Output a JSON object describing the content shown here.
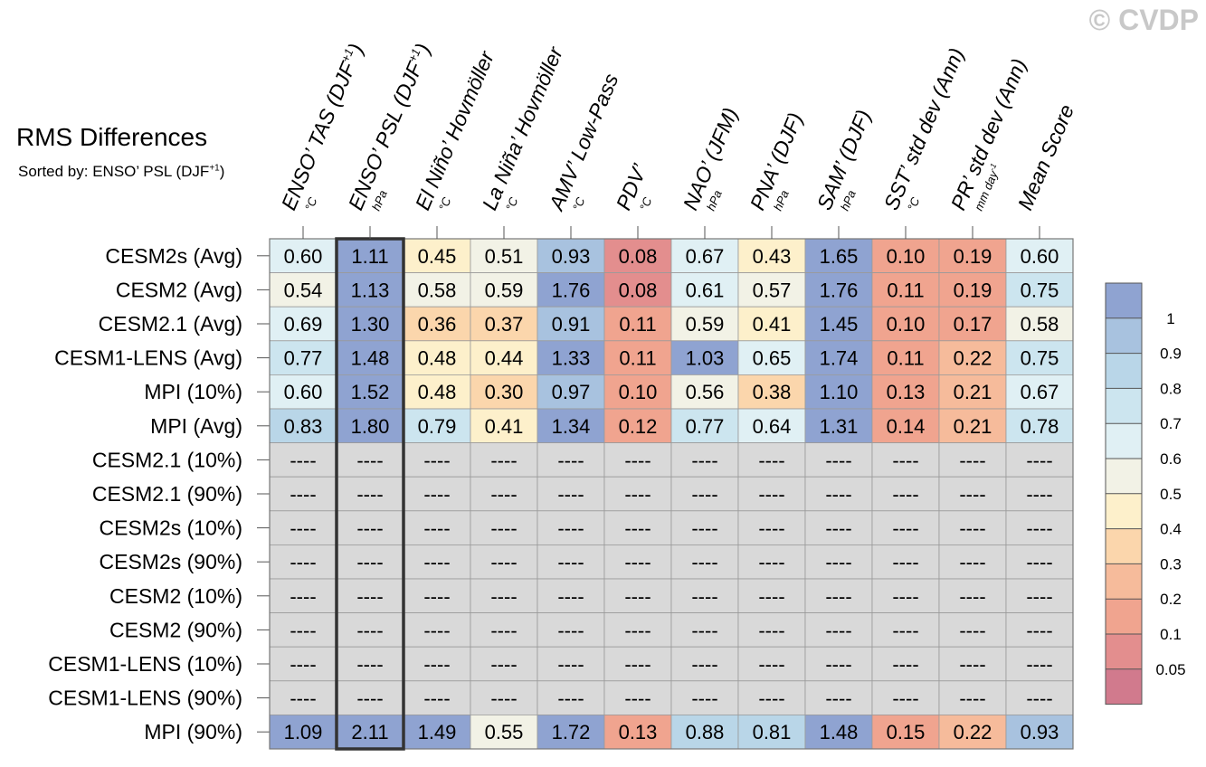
{
  "title": "RMS Differences",
  "subtitle": {
    "prefix": "Sorted by: ENSO’ PSL (DJF",
    "sup": "+1",
    "suffix": ")"
  },
  "watermark": "© CVDP",
  "chart_data": {
    "type": "table",
    "sorted_by_column": 1,
    "columns": [
      {
        "label": "ENSO’ TAS (DJF",
        "sup": "+1",
        "suffix": ")",
        "unit": "°C"
      },
      {
        "label": "ENSO’ PSL (DJF",
        "sup": "+1",
        "suffix": ")",
        "unit": "hPa"
      },
      {
        "label": "El Niño’ Hovmöller",
        "unit": "°C"
      },
      {
        "label": "La Niña’ Hovmöller",
        "unit": "°C"
      },
      {
        "label": "AMV’ Low-Pass",
        "unit": "°C"
      },
      {
        "label": "PDV’",
        "unit": "°C"
      },
      {
        "label": "NAO’ (JFM)",
        "unit": "hPa"
      },
      {
        "label": "PNA’ (DJF)",
        "unit": "hPa"
      },
      {
        "label": "SAM’ (DJF)",
        "unit": "hPa"
      },
      {
        "label": "SST’ std dev (Ann)",
        "unit": "°C"
      },
      {
        "label": "PR’ std dev (Ann)",
        "unit": "mm day",
        "unit_sup": "-1"
      },
      {
        "label": "Mean Score",
        "unit": ""
      }
    ],
    "rows": [
      {
        "name": "CESM2s (Avg)",
        "values": [
          "0.60",
          "1.11",
          "0.45",
          "0.51",
          "0.93",
          "0.08",
          "0.67",
          "0.43",
          "1.65",
          "0.10",
          "0.19",
          "0.60"
        ]
      },
      {
        "name": "CESM2 (Avg)",
        "values": [
          "0.54",
          "1.13",
          "0.58",
          "0.59",
          "1.76",
          "0.08",
          "0.61",
          "0.57",
          "1.76",
          "0.11",
          "0.19",
          "0.75"
        ]
      },
      {
        "name": "CESM2.1 (Avg)",
        "values": [
          "0.69",
          "1.30",
          "0.36",
          "0.37",
          "0.91",
          "0.11",
          "0.59",
          "0.41",
          "1.45",
          "0.10",
          "0.17",
          "0.58"
        ]
      },
      {
        "name": "CESM1-LENS (Avg)",
        "values": [
          "0.77",
          "1.48",
          "0.48",
          "0.44",
          "1.33",
          "0.11",
          "1.03",
          "0.65",
          "1.74",
          "0.11",
          "0.22",
          "0.75"
        ]
      },
      {
        "name": "MPI (10%)",
        "values": [
          "0.60",
          "1.52",
          "0.48",
          "0.30",
          "0.97",
          "0.10",
          "0.56",
          "0.38",
          "1.10",
          "0.13",
          "0.21",
          "0.67"
        ]
      },
      {
        "name": "MPI (Avg)",
        "values": [
          "0.83",
          "1.80",
          "0.79",
          "0.41",
          "1.34",
          "0.12",
          "0.77",
          "0.64",
          "1.31",
          "0.14",
          "0.21",
          "0.78"
        ]
      },
      {
        "name": "CESM2.1 (10%)",
        "values": [
          "----",
          "----",
          "----",
          "----",
          "----",
          "----",
          "----",
          "----",
          "----",
          "----",
          "----",
          "----"
        ]
      },
      {
        "name": "CESM2.1 (90%)",
        "values": [
          "----",
          "----",
          "----",
          "----",
          "----",
          "----",
          "----",
          "----",
          "----",
          "----",
          "----",
          "----"
        ]
      },
      {
        "name": "CESM2s (10%)",
        "values": [
          "----",
          "----",
          "----",
          "----",
          "----",
          "----",
          "----",
          "----",
          "----",
          "----",
          "----",
          "----"
        ]
      },
      {
        "name": "CESM2s (90%)",
        "values": [
          "----",
          "----",
          "----",
          "----",
          "----",
          "----",
          "----",
          "----",
          "----",
          "----",
          "----",
          "----"
        ]
      },
      {
        "name": "CESM2 (10%)",
        "values": [
          "----",
          "----",
          "----",
          "----",
          "----",
          "----",
          "----",
          "----",
          "----",
          "----",
          "----",
          "----"
        ]
      },
      {
        "name": "CESM2 (90%)",
        "values": [
          "----",
          "----",
          "----",
          "----",
          "----",
          "----",
          "----",
          "----",
          "----",
          "----",
          "----",
          "----"
        ]
      },
      {
        "name": "CESM1-LENS (10%)",
        "values": [
          "----",
          "----",
          "----",
          "----",
          "----",
          "----",
          "----",
          "----",
          "----",
          "----",
          "----",
          "----"
        ]
      },
      {
        "name": "CESM1-LENS (90%)",
        "values": [
          "----",
          "----",
          "----",
          "----",
          "----",
          "----",
          "----",
          "----",
          "----",
          "----",
          "----",
          "----"
        ]
      },
      {
        "name": "MPI (90%)",
        "values": [
          "1.09",
          "2.11",
          "1.49",
          "0.55",
          "1.72",
          "0.13",
          "0.88",
          "0.81",
          "1.48",
          "0.15",
          "0.22",
          "0.93"
        ]
      }
    ],
    "missing_value_color": "#d9d9d9",
    "colorbar": {
      "levels": [
        0.05,
        0.1,
        0.2,
        0.3,
        0.4,
        0.5,
        0.6,
        0.7,
        0.8,
        0.9,
        1
      ],
      "labels": [
        "0.05",
        "0.1",
        "0.2",
        "0.3",
        "0.4",
        "0.5",
        "0.6",
        "0.7",
        "0.8",
        "0.9",
        "1"
      ],
      "colors": [
        "#d17a8d",
        "#e38e8e",
        "#f0a48f",
        "#f6bb9b",
        "#fbd6ac",
        "#fdf0cb",
        "#f2f2e6",
        "#e0f0f4",
        "#cce5ef",
        "#b9d6e8",
        "#a8c2df",
        "#8fa3d1"
      ]
    }
  }
}
